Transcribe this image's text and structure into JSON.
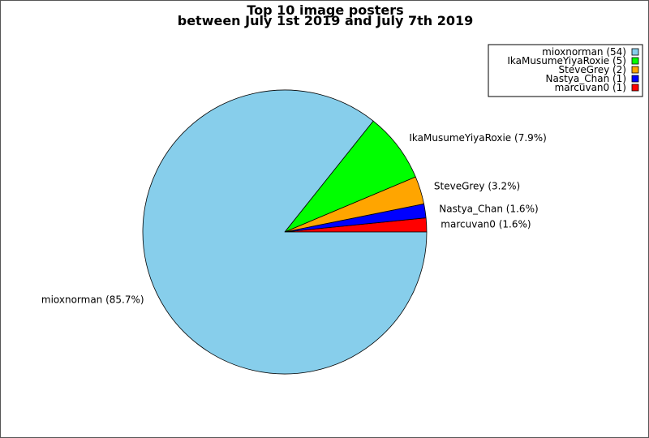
{
  "chart_data": {
    "type": "pie",
    "title": "Top 10 image posters",
    "subtitle": "between July 1st 2019 and July 7th 2019",
    "legend_position": "top-right",
    "slices": [
      {
        "name": "mioxnorman",
        "count": 54,
        "percent_label": "85.7%",
        "legend_label": "mioxnorman (54)",
        "slice_label": "mioxnorman (85.7%)",
        "color": "#87ceeb"
      },
      {
        "name": "IkaMusumeYiyaRoxie",
        "count": 5,
        "percent_label": "7.9%",
        "legend_label": "IkaMusumeYiyaRoxie (5)",
        "slice_label": "IkaMusumeYiyaRoxie (7.9%)",
        "color": "#00ff00"
      },
      {
        "name": "SteveGrey",
        "count": 2,
        "percent_label": "3.2%",
        "legend_label": "SteveGrey (2)",
        "slice_label": "SteveGrey (3.2%)",
        "color": "#ffa500"
      },
      {
        "name": "Nastya_Chan",
        "count": 1,
        "percent_label": "1.6%",
        "legend_label": "Nastya_Chan (1)",
        "slice_label": "Nastya_Chan (1.6%)",
        "color": "#0000ff"
      },
      {
        "name": "marcuvan0",
        "count": 1,
        "percent_label": "1.6%",
        "legend_label": "marcuvan0 (1)",
        "slice_label": "marcuvan0 (1.6%)",
        "color": "#ff0000"
      }
    ]
  }
}
